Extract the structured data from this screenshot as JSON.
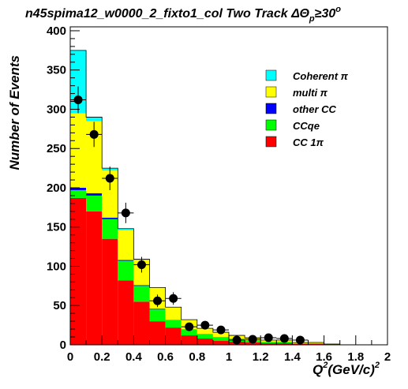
{
  "chart_data": {
    "type": "bar",
    "stacked": true,
    "title_main": "n45spima12_w0000_2_fixto1_col Two Track ΔΘ",
    "title_sub": "p",
    "title_tail": "≥30",
    "title_sup": "o",
    "xlabel_main": "Q",
    "xlabel_sup1": "2",
    "xlabel_mid": "(GeV/c)",
    "xlabel_sup2": "2",
    "ylabel": "Number of Events",
    "xlim": [
      0,
      2
    ],
    "ylim": [
      0,
      405
    ],
    "bin_width": 0.1,
    "x_ticks": [
      "0",
      "0.2",
      "0.4",
      "0.6",
      "0.8",
      "1",
      "1.2",
      "1.4",
      "1.6",
      "1.8",
      "2"
    ],
    "y_ticks": [
      "0",
      "50",
      "100",
      "150",
      "200",
      "250",
      "300",
      "350",
      "400"
    ],
    "legend_position": "top-right",
    "bin_edges": [
      0,
      0.1,
      0.2,
      0.3,
      0.4,
      0.5,
      0.6,
      0.7,
      0.8,
      0.9,
      1.0,
      1.1,
      1.2,
      1.3,
      1.4,
      1.5,
      1.6,
      1.7,
      1.8,
      1.9,
      2.0
    ],
    "series": [
      {
        "name": "CC 1π",
        "color": "#ff0000",
        "values": [
          187,
          170,
          135,
          82,
          55,
          30,
          22,
          12,
          8,
          5,
          4,
          3,
          2,
          2,
          1,
          1,
          0,
          0,
          0,
          0
        ]
      },
      {
        "name": "CCqe",
        "color": "#00ff00",
        "values": [
          10,
          20,
          25,
          25,
          20,
          15,
          10,
          8,
          6,
          5,
          4,
          3,
          2,
          2,
          1,
          1,
          0,
          0,
          0,
          0
        ]
      },
      {
        "name": "other CC",
        "color": "#0000ff",
        "values": [
          3,
          3,
          2,
          1,
          1,
          1,
          0,
          0,
          0,
          0,
          0,
          0,
          0,
          0,
          0,
          0,
          0,
          0,
          0,
          0
        ]
      },
      {
        "name": "multi π",
        "color": "#ffff00",
        "values": [
          95,
          92,
          60,
          38,
          32,
          27,
          16,
          12,
          7,
          6,
          4,
          3,
          2,
          2,
          1,
          1,
          1,
          0,
          0,
          0
        ]
      },
      {
        "name": "Coherent π",
        "color": "#00ffff",
        "values": [
          80,
          5,
          3,
          2,
          1,
          0,
          0,
          0,
          0,
          0,
          0,
          0,
          0,
          0,
          0,
          0,
          0,
          0,
          0,
          0
        ]
      }
    ],
    "data_points": {
      "x": [
        0.05,
        0.15,
        0.25,
        0.35,
        0.45,
        0.55,
        0.65,
        0.75,
        0.85,
        0.95,
        1.05,
        1.15,
        1.25,
        1.35,
        1.45
      ],
      "y": [
        312,
        268,
        212,
        168,
        102,
        56,
        59,
        23,
        25,
        19,
        6,
        7,
        9,
        8,
        6
      ],
      "err": [
        17,
        16,
        15,
        13,
        10,
        8,
        8,
        5,
        5,
        4,
        2.5,
        2.5,
        3,
        3,
        2.5
      ]
    },
    "legend": [
      {
        "label": "Coherent π",
        "color": "#00ffff"
      },
      {
        "label": "multi π",
        "color": "#ffff00"
      },
      {
        "label": "other CC",
        "color": "#0000ff"
      },
      {
        "label": "CCqe",
        "color": "#00ff00"
      },
      {
        "label": "CC 1π",
        "color": "#ff0000"
      }
    ]
  }
}
